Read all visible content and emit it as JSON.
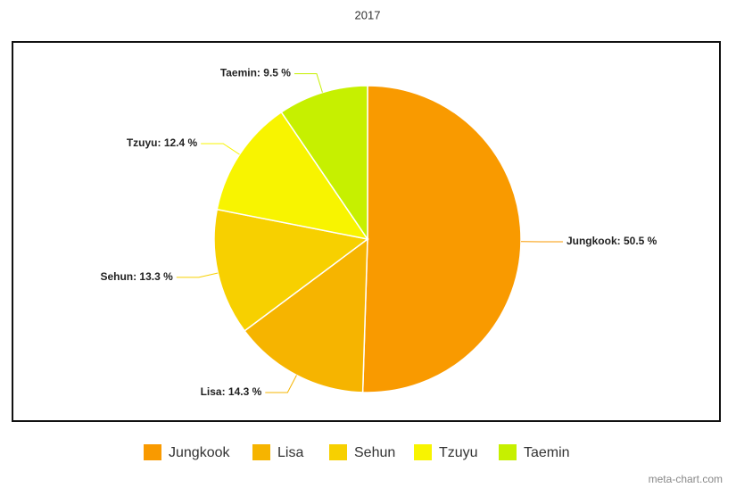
{
  "chart_data": {
    "type": "pie",
    "title": "2017",
    "categories": [
      "Jungkook",
      "Lisa",
      "Sehun",
      "Tzuyu",
      "Taemin"
    ],
    "values": [
      50.5,
      14.3,
      13.3,
      12.4,
      9.5
    ],
    "value_labels": [
      "Jungkook: 50.5 %",
      "Lisa: 14.3 %",
      "Sehun: 13.3 %",
      "Tzuyu: 12.4 %",
      "Taemin: 9.5 %"
    ],
    "colors": [
      "#f99a00",
      "#f6b400",
      "#f7d000",
      "#f8f400",
      "#c6f000"
    ],
    "watermark": "meta-chart.com"
  }
}
